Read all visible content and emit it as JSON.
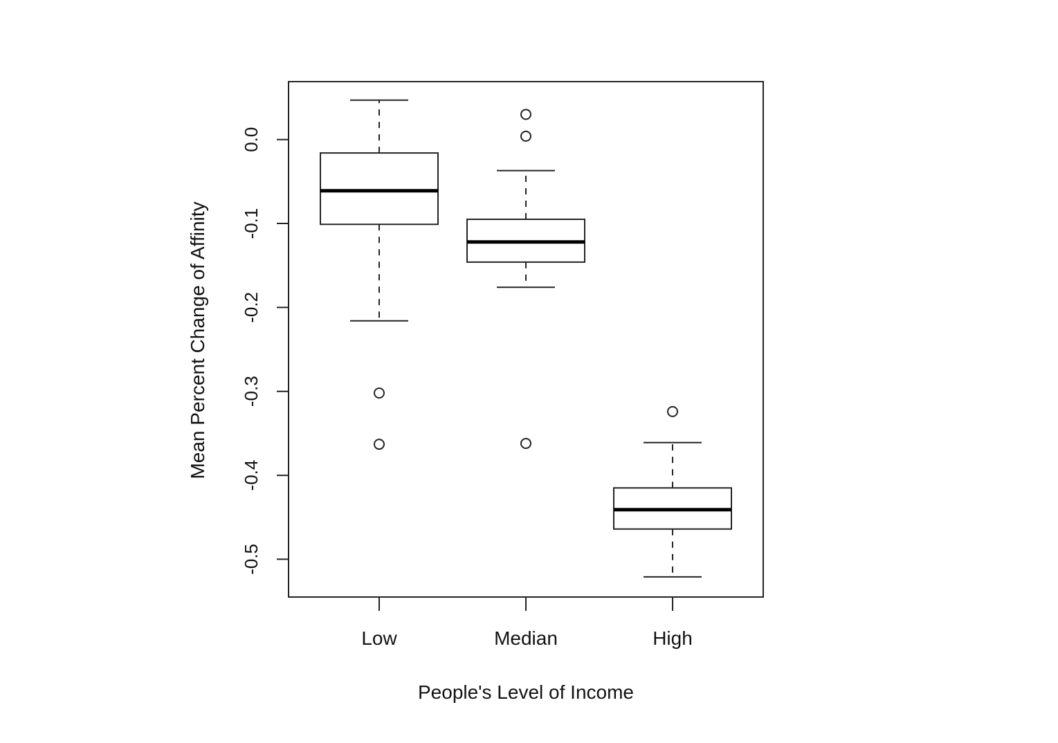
{
  "chart_data": {
    "type": "box",
    "xlabel": "People's Level of Income",
    "ylabel": "Mean Percent Change of Affinity",
    "categories": [
      "Low",
      "Median",
      "High"
    ],
    "ylim": [
      -0.545,
      0.069
    ],
    "yticks": [
      0.0,
      -0.1,
      -0.2,
      -0.3,
      -0.4,
      -0.5
    ],
    "ytick_labels": [
      "0.0",
      "-0.1",
      "-0.2",
      "-0.3",
      "-0.4",
      "-0.5"
    ],
    "boxes": [
      {
        "category": "Low",
        "whisker_low": -0.216,
        "q1": -0.101,
        "median": -0.061,
        "q3": -0.016,
        "whisker_high": 0.047,
        "outliers": [
          -0.302,
          -0.363
        ]
      },
      {
        "category": "Median",
        "whisker_low": -0.176,
        "q1": -0.146,
        "median": -0.122,
        "q3": -0.095,
        "whisker_high": -0.037,
        "outliers": [
          0.03,
          0.004,
          -0.362
        ]
      },
      {
        "category": "High",
        "whisker_low": -0.521,
        "q1": -0.464,
        "median": -0.441,
        "q3": -0.415,
        "whisker_high": -0.361,
        "outliers": [
          -0.324
        ]
      }
    ],
    "grid": false,
    "legend": "none"
  }
}
